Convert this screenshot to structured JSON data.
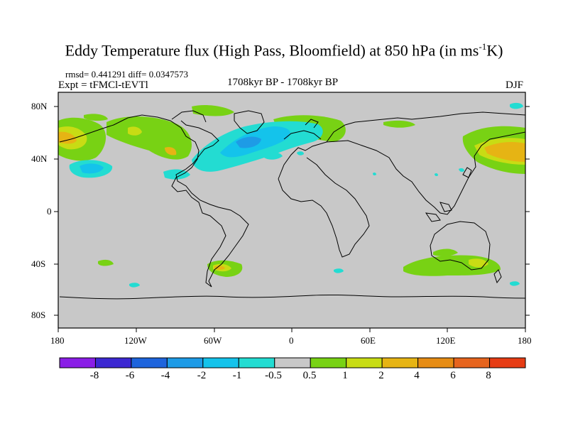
{
  "title": {
    "main": "Eddy Temperature flux (High Pass, Bloomfield) at 850 hPa (in ms",
    "sup": "-1",
    "end": "K)"
  },
  "stats": "rmsd= 0.441291 diff= 0.0347573",
  "expt": "Expt = tFMCl-tEVTl",
  "period": "1708kyr BP - 1708kyr BP",
  "season": "DJF",
  "lat_labels": [
    "80N",
    "40N",
    "0",
    "40S",
    "80S"
  ],
  "lon_labels": [
    "180",
    "120W",
    "60W",
    "0",
    "60E",
    "120E",
    "180"
  ],
  "colorbar": {
    "labels": [
      "-8",
      "-6",
      "-4",
      "-2",
      "-1",
      "-0.5",
      "0.5",
      "1",
      "2",
      "4",
      "6",
      "8"
    ],
    "colors": [
      "#8a1ee6",
      "#3c28d2",
      "#1e64dc",
      "#1e9be6",
      "#14c3eb",
      "#23dcd2",
      "#c8c8c8",
      "#78d214",
      "#c8dc14",
      "#e6b414",
      "#e68c14",
      "#e6641e",
      "#e63c14"
    ]
  },
  "colors": {
    "land_ocean": "#c8c8c8",
    "pos_light": "#78d214",
    "pos_mid": "#c8dc14",
    "pos_high": "#e6b414",
    "neg_light": "#23dcd2",
    "neg_mid": "#14c3eb",
    "neg_high": "#1e9be6"
  }
}
